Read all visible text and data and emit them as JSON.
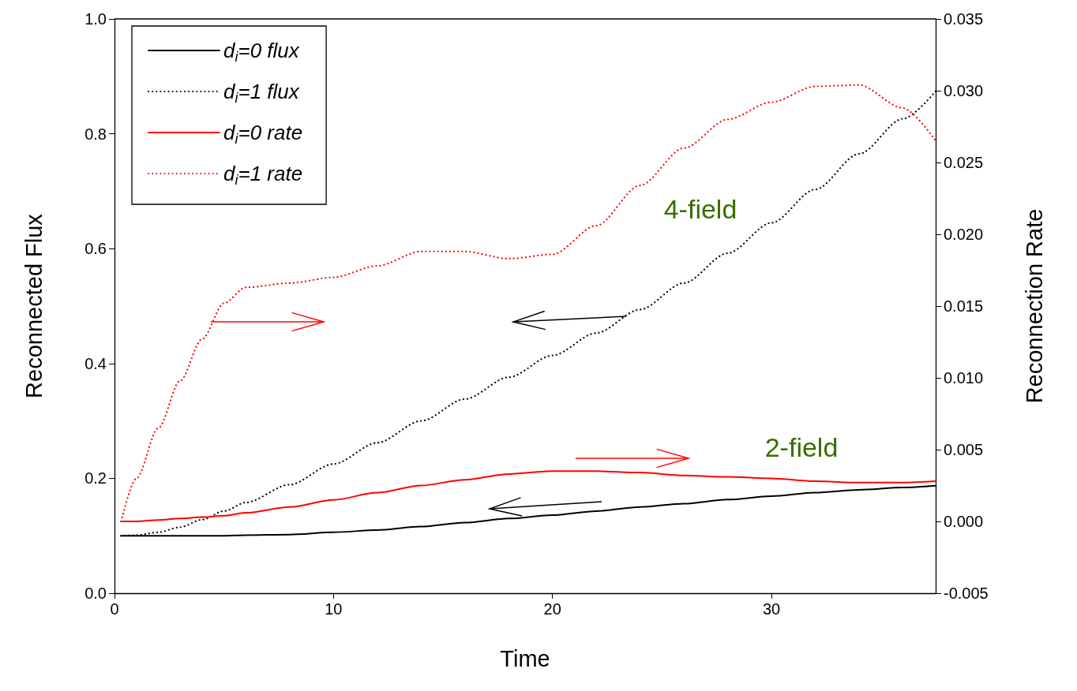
{
  "chart_data": {
    "type": "line",
    "xlabel": "Time",
    "ylabel": "Reconnected Flux",
    "y2label": "Reconnection Rate",
    "x": [
      0.3,
      1,
      2,
      3,
      4,
      5,
      6,
      8,
      10,
      12,
      14,
      16,
      18,
      20,
      22,
      24,
      26,
      28,
      30,
      32,
      34,
      36,
      37.5
    ],
    "series": [
      {
        "name": "d$_{i}$=0 flux",
        "color": "#000000",
        "line_style": "solid",
        "values": [
          0.1,
          0.1,
          0.1,
          0.1,
          0.1,
          0.1,
          0.101,
          0.102,
          0.106,
          0.11,
          0.116,
          0.123,
          0.13,
          0.136,
          0.143,
          0.15,
          0.156,
          0.163,
          0.169,
          0.175,
          0.18,
          0.184,
          0.187
        ]
      },
      {
        "name": "d$_{i}$=1 flux",
        "color": "#000000",
        "line_style": "dotted",
        "values": [
          0.1,
          0.101,
          0.106,
          0.115,
          0.128,
          0.143,
          0.158,
          0.189,
          0.225,
          0.262,
          0.3,
          0.338,
          0.376,
          0.414,
          0.453,
          0.494,
          0.54,
          0.592,
          0.645,
          0.703,
          0.765,
          0.826,
          0.874
        ]
      },
      {
        "name": "d$_{i}$=0 rate",
        "color": "#ff0000",
        "line_style": "solid",
        "axis": "y2",
        "values": [
          0.0,
          0.0,
          0.0001,
          0.0002,
          0.0003,
          0.0004,
          0.0006,
          0.001,
          0.0015,
          0.002,
          0.0025,
          0.0029,
          0.0033,
          0.0035,
          0.0035,
          0.0034,
          0.0032,
          0.0031,
          0.003,
          0.0028,
          0.0027,
          0.0027,
          0.0028
        ]
      },
      {
        "name": "d$_{i}$=1 rate",
        "color": "#ff0000",
        "line_style": "dotted",
        "axis": "y2",
        "values": [
          0.0,
          0.003,
          0.0065,
          0.0098,
          0.0127,
          0.0152,
          0.0163,
          0.0166,
          0.017,
          0.0178,
          0.0188,
          0.0188,
          0.0183,
          0.0186,
          0.0206,
          0.0234,
          0.026,
          0.028,
          0.0292,
          0.0303,
          0.0304,
          0.0288,
          0.0265
        ]
      }
    ],
    "xlim": [
      0,
      37.5
    ],
    "xticks": [
      0,
      10,
      20,
      30
    ],
    "ylim": [
      0,
      1
    ],
    "yticks": [
      {
        "value": 0,
        "label": "0.0"
      },
      {
        "value": 0.2,
        "label": "0.2"
      },
      {
        "value": 0.4,
        "label": "0.4"
      },
      {
        "value": 0.6,
        "label": "0.6"
      },
      {
        "value": 0.8,
        "label": "0.8"
      },
      {
        "value": 1,
        "label": "1.0"
      }
    ],
    "y2lim": [
      -0.005,
      0.035
    ],
    "y2ticks": [
      {
        "value": -0.005,
        "label": "-0.005"
      },
      {
        "value": 0,
        "label": "0.000"
      },
      {
        "value": 0.005,
        "label": "0.005"
      },
      {
        "value": 0.01,
        "label": "0.010"
      },
      {
        "value": 0.015,
        "label": "0.015"
      },
      {
        "value": 0.02,
        "label": "0.020"
      },
      {
        "value": 0.025,
        "label": "0.025"
      },
      {
        "value": 0.03,
        "label": "0.030"
      },
      {
        "value": 0.035,
        "label": "0.035"
      }
    ],
    "annotations": [
      "4-field",
      "2-field"
    ],
    "legend": "top left",
    "marker": "none",
    "grid": false
  }
}
